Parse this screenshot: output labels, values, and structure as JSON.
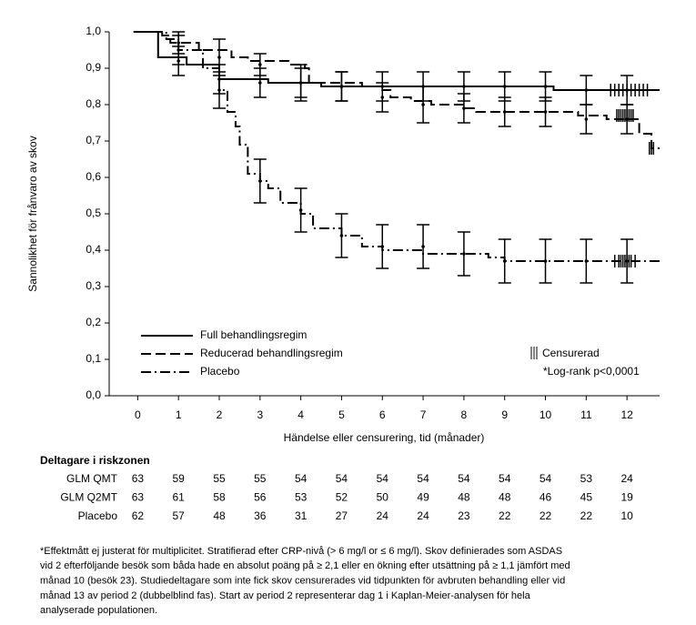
{
  "chart_data": {
    "type": "km",
    "ylabel": "Sannolikhet för frånvaro av skov",
    "xlabel": "Händelse eller censurering, tid (månader)",
    "xlim": [
      -0.7,
      12.8
    ],
    "ylim": [
      0,
      1
    ],
    "xticks": [
      0,
      1,
      2,
      3,
      4,
      5,
      6,
      7,
      8,
      9,
      10,
      11,
      12
    ],
    "yticks": [
      {
        "value": 0,
        "label": "0,0"
      },
      {
        "value": 0.1,
        "label": "0,1"
      },
      {
        "value": 0.2,
        "label": "0,2"
      },
      {
        "value": 0.3,
        "label": "0,3"
      },
      {
        "value": 0.4,
        "label": "0,4"
      },
      {
        "value": 0.5,
        "label": "0,5"
      },
      {
        "value": 0.6,
        "label": "0,6"
      },
      {
        "value": 0.7,
        "label": "0,7"
      },
      {
        "value": 0.8,
        "label": "0,8"
      },
      {
        "value": 0.9,
        "label": "0,9"
      },
      {
        "value": 1,
        "label": "1,0"
      }
    ],
    "series": [
      {
        "name": "Full behandlingsregim",
        "color": "#000000",
        "line_style": "solid",
        "x": [
          -0.1,
          0.5,
          1.2,
          2.0,
          3.2,
          4.5,
          10.2
        ],
        "values": [
          1.0,
          0.93,
          0.91,
          0.87,
          0.86,
          0.85,
          0.84
        ],
        "error_bars": {
          "x": [
            1,
            2,
            3,
            4,
            5,
            6,
            7,
            8,
            9,
            10,
            11,
            12
          ],
          "values": [
            0.92,
            0.87,
            0.86,
            0.86,
            0.85,
            0.85,
            0.85,
            0.85,
            0.85,
            0.85,
            0.84,
            0.84
          ],
          "errors": [
            0.04,
            0.04,
            0.04,
            0.04,
            0.04,
            0.04,
            0.04,
            0.04,
            0.04,
            0.04,
            0.04,
            0.04
          ]
        },
        "censored": {
          "x": [
            11.6,
            11.7,
            11.8,
            11.9,
            12.0,
            12.1,
            12.2,
            12.3,
            12.4,
            12.5
          ],
          "values": [
            0.84,
            0.84,
            0.84,
            0.84,
            0.84,
            0.84,
            0.84,
            0.84,
            0.84,
            0.84
          ]
        }
      },
      {
        "name": "Reducerad behandlingsregim",
        "color": "#000000",
        "line_style": "dashed",
        "x": [
          -0.1,
          0.6,
          0.8,
          1.5,
          2.3,
          2.7,
          3.7,
          4.1,
          4.2,
          5.5,
          6.0,
          6.2,
          6.7,
          7.2,
          8.0,
          8.3,
          10.8,
          11.5,
          12.3,
          12.6
        ],
        "values": [
          1.0,
          0.99,
          0.97,
          0.95,
          0.93,
          0.92,
          0.91,
          0.9,
          0.86,
          0.85,
          0.84,
          0.82,
          0.81,
          0.8,
          0.79,
          0.78,
          0.77,
          0.76,
          0.72,
          0.68
        ],
        "error_bars": {
          "x": [
            1,
            2,
            3,
            4,
            5,
            6,
            7,
            8,
            9,
            10,
            11,
            12
          ],
          "values": [
            0.97,
            0.93,
            0.91,
            0.86,
            0.85,
            0.82,
            0.8,
            0.79,
            0.78,
            0.78,
            0.76,
            0.76
          ],
          "errors": [
            0.03,
            0.05,
            0.03,
            0.05,
            0.04,
            0.04,
            0.05,
            0.04,
            0.04,
            0.04,
            0.04,
            0.04
          ]
        },
        "censored": {
          "x": [
            11.75,
            11.8,
            11.85,
            11.9,
            11.95,
            12.0,
            12.05,
            12.1,
            12.15,
            12.55,
            12.6,
            12.65
          ],
          "values": [
            0.77,
            0.77,
            0.77,
            0.77,
            0.77,
            0.77,
            0.77,
            0.77,
            0.77,
            0.68,
            0.68,
            0.68
          ]
        }
      },
      {
        "name": "Placebo",
        "color": "#000000",
        "line_style": "dashdot",
        "x": [
          -0.1,
          0.7,
          1.0,
          1.6,
          2.0,
          2.2,
          2.4,
          2.5,
          2.7,
          3.0,
          3.2,
          3.5,
          4.0,
          4.3,
          5.0,
          5.5,
          6.0,
          7.0,
          8.6,
          9.0
        ],
        "values": [
          1.0,
          0.98,
          0.95,
          0.9,
          0.84,
          0.78,
          0.74,
          0.69,
          0.61,
          0.59,
          0.57,
          0.53,
          0.5,
          0.46,
          0.44,
          0.41,
          0.4,
          0.39,
          0.38,
          0.37
        ],
        "error_bars": {
          "x": [
            1,
            2,
            3,
            4,
            5,
            6,
            7,
            8,
            9,
            10,
            11,
            12
          ],
          "values": [
            0.95,
            0.84,
            0.59,
            0.51,
            0.44,
            0.41,
            0.41,
            0.39,
            0.37,
            0.37,
            0.37,
            0.37
          ],
          "errors": [
            0.04,
            0.05,
            0.06,
            0.06,
            0.06,
            0.06,
            0.06,
            0.06,
            0.06,
            0.06,
            0.06,
            0.06
          ]
        },
        "censored": {
          "x": [
            11.7,
            11.8,
            11.85,
            11.9,
            11.95,
            12.0,
            12.05,
            12.1,
            12.2
          ],
          "values": [
            0.37,
            0.37,
            0.37,
            0.37,
            0.37,
            0.37,
            0.37,
            0.37,
            0.37
          ]
        }
      }
    ],
    "annotations": [
      "Censurerad",
      "*Log-rank p<0,0001"
    ],
    "risk_table": {
      "title": "Deltagare i riskzonen",
      "rows": [
        {
          "name": "GLM QMT",
          "values": [
            63,
            59,
            55,
            55,
            54,
            54,
            54,
            54,
            54,
            54,
            54,
            53,
            24
          ]
        },
        {
          "name": "GLM Q2MT",
          "values": [
            63,
            61,
            58,
            56,
            53,
            52,
            50,
            49,
            48,
            48,
            46,
            45,
            19
          ]
        },
        {
          "name": "Placebo",
          "values": [
            62,
            57,
            48,
            36,
            31,
            27,
            24,
            24,
            23,
            22,
            22,
            22,
            10
          ]
        }
      ]
    },
    "footnote": [
      "*Effektmått ej justerat för multiplicitet. Stratifierad efter CRP-nivå (> 6 mg/l or ≤ 6 mg/l). Skov definierades som ASDAS",
      "vid 2 efterföljande besök som båda hade en absolut poäng på ≥ 2,1 eller en ökning efter utsättning på ≥ 1,1 jämfört med",
      "månad 10 (besök 23). Studiedeltagare som inte fick skov censurerades vid tidpunkten för avbruten behandling eller vid",
      "månad 13 av period 2 (dubbelblind fas). Start av period 2 representerar dag 1 i Kaplan-Meier-analysen för hela",
      "analyserade populationen."
    ]
  }
}
